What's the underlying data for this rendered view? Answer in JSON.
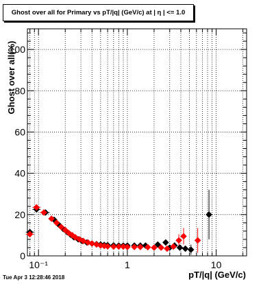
{
  "page": {
    "title": "Ghost over all for Primary vs pT/|q| (GeV/c) at |  η | <= 1.0",
    "timestamp": "Tue Apr  3 12:28:46 2018"
  },
  "chart_data": {
    "type": "scatter",
    "title": "Ghost over all for Primary vs pT/|q| (GeV/c) at |  η | <= 1.0",
    "xlabel": "pT/|q| (GeV/c)",
    "ylabel": "Ghost over all(%)",
    "x_scale": "log",
    "xlim": [
      0.075,
      22
    ],
    "ylim": [
      0,
      110
    ],
    "x_tick_labels": [
      "10⁻¹",
      "1",
      "10"
    ],
    "y_tick_labels": [
      "0",
      "20",
      "40",
      "60",
      "80",
      "100"
    ],
    "grid": true,
    "series": [
      {
        "color": "#000000",
        "marker": "diamond",
        "points": [
          [
            0.08,
            11.5
          ],
          [
            0.095,
            22.5
          ],
          [
            0.12,
            21.0
          ],
          [
            0.15,
            17.5
          ],
          [
            0.17,
            15.0
          ],
          [
            0.19,
            13.0
          ],
          [
            0.21,
            11.5
          ],
          [
            0.23,
            10.2
          ],
          [
            0.25,
            9.0
          ],
          [
            0.28,
            8.0
          ],
          [
            0.31,
            7.2
          ],
          [
            0.35,
            6.5
          ],
          [
            0.4,
            6.0
          ],
          [
            0.45,
            5.7
          ],
          [
            0.5,
            5.5
          ],
          [
            0.55,
            5.3
          ],
          [
            0.6,
            5.2
          ],
          [
            0.7,
            5.1
          ],
          [
            0.8,
            5.0
          ],
          [
            0.9,
            5.0
          ],
          [
            1.0,
            5.0
          ],
          [
            1.2,
            5.0
          ],
          [
            1.4,
            5.0
          ],
          [
            1.6,
            5.0
          ],
          [
            2.2,
            5.5
          ],
          [
            2.7,
            6.5
          ],
          [
            3.0,
            4.0
          ],
          [
            3.4,
            5.0
          ],
          [
            3.9,
            4.0
          ],
          [
            4.5,
            3.5
          ],
          [
            5.2,
            3.0
          ],
          [
            8.3,
            20.0
          ]
        ],
        "errors": [
          [
            0.08,
            1.0
          ],
          [
            0.095,
            1.5
          ],
          [
            0.12,
            1.0
          ],
          [
            0.15,
            0.6
          ],
          [
            0.3,
            0.3
          ],
          [
            1.0,
            0.3
          ],
          [
            2.7,
            1.5
          ],
          [
            3.4,
            1.5
          ],
          [
            4.5,
            1.5
          ],
          [
            5.2,
            2.5
          ],
          [
            8.3,
            12.0
          ]
        ]
      },
      {
        "color": "#ff0000",
        "marker": "diamond",
        "points": [
          [
            0.08,
            10.5
          ],
          [
            0.095,
            23.5
          ],
          [
            0.115,
            21.0
          ],
          [
            0.14,
            18.0
          ],
          [
            0.16,
            16.0
          ],
          [
            0.18,
            14.0
          ],
          [
            0.2,
            12.5
          ],
          [
            0.22,
            11.0
          ],
          [
            0.24,
            10.0
          ],
          [
            0.26,
            9.0
          ],
          [
            0.29,
            8.0
          ],
          [
            0.32,
            7.2
          ],
          [
            0.36,
            6.5
          ],
          [
            0.4,
            6.0
          ],
          [
            0.45,
            5.5
          ],
          [
            0.5,
            5.0
          ],
          [
            0.55,
            4.8
          ],
          [
            0.6,
            4.6
          ],
          [
            0.7,
            4.5
          ],
          [
            0.8,
            4.5
          ],
          [
            0.9,
            4.5
          ],
          [
            1.0,
            4.3
          ],
          [
            1.2,
            4.3
          ],
          [
            1.4,
            4.3
          ],
          [
            1.7,
            4.2
          ],
          [
            2.0,
            4.0
          ],
          [
            2.4,
            4.0
          ],
          [
            2.8,
            3.5
          ],
          [
            3.3,
            4.5
          ],
          [
            3.8,
            7.5
          ],
          [
            4.3,
            9.5
          ],
          [
            6.2,
            7.5
          ]
        ],
        "errors": [
          [
            0.08,
            1.0
          ],
          [
            0.095,
            1.5
          ],
          [
            0.115,
            1.0
          ],
          [
            0.14,
            0.6
          ],
          [
            1.0,
            0.3
          ],
          [
            3.8,
            3.0
          ],
          [
            4.3,
            4.0
          ],
          [
            6.2,
            6.0
          ]
        ]
      }
    ]
  }
}
